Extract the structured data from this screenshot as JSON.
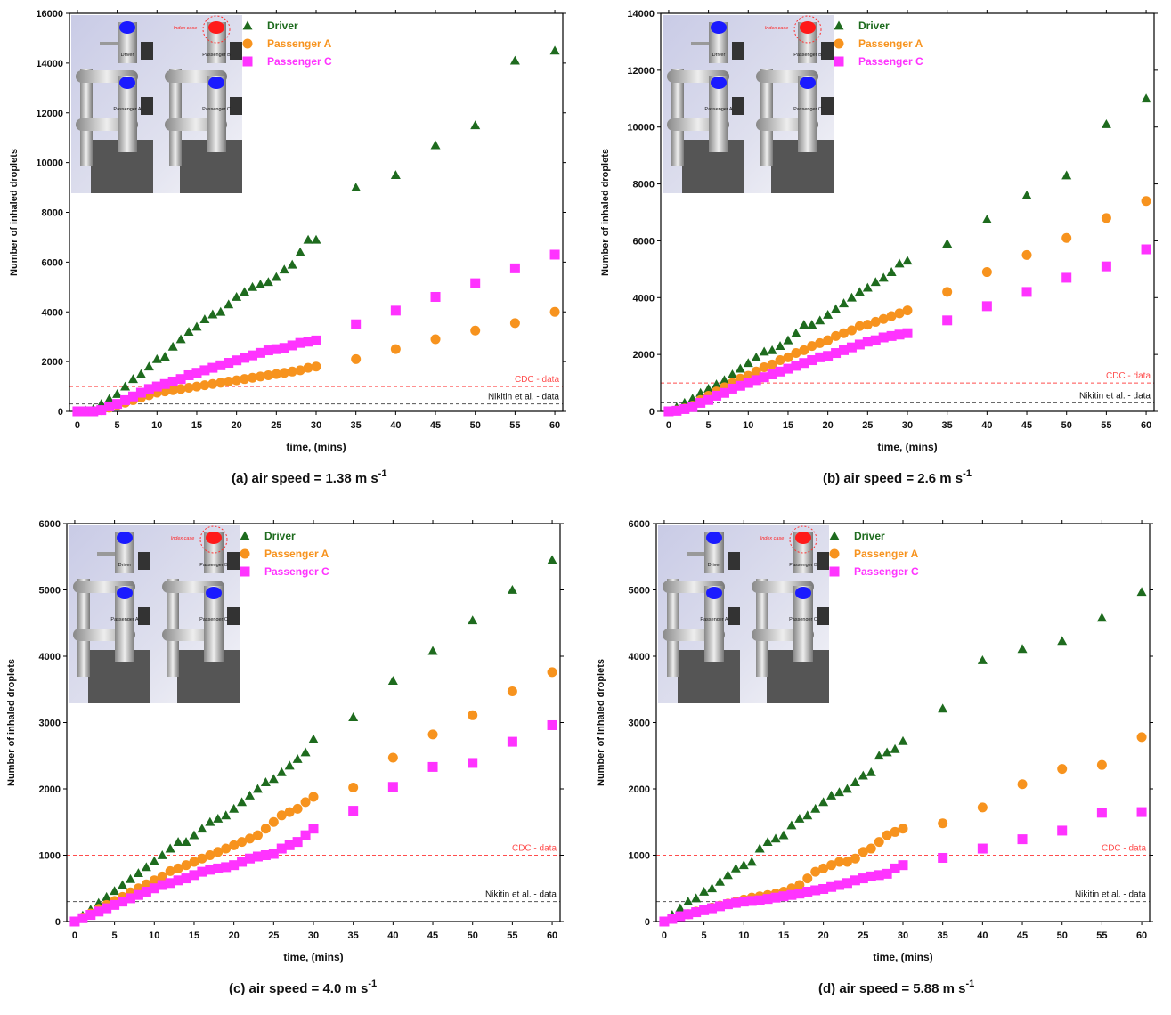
{
  "chart_data": [
    {
      "type": "scatter",
      "x_label": "time, (mins)",
      "y_label": "Number of inhaled droplets",
      "caption": "(a)  air speed = 1.38 m s",
      "caption_sup": "-1",
      "x": [
        0,
        1,
        2,
        3,
        4,
        5,
        6,
        7,
        8,
        9,
        10,
        11,
        12,
        13,
        14,
        15,
        16,
        17,
        18,
        19,
        20,
        21,
        22,
        23,
        24,
        25,
        26,
        27,
        28,
        29,
        30,
        35,
        40,
        45,
        50,
        55,
        60
      ],
      "xlim": [
        -1,
        61
      ],
      "xticks": [
        0,
        5,
        10,
        15,
        20,
        25,
        30,
        35,
        40,
        45,
        50,
        55,
        60
      ],
      "ylim": [
        0,
        16000
      ],
      "yticks": [
        0,
        2000,
        4000,
        6000,
        8000,
        10000,
        12000,
        14000,
        16000
      ],
      "series": [
        {
          "name": "Driver",
          "color": "#1e6b1e",
          "marker": "triangle",
          "values": [
            0,
            50,
            100,
            300,
            500,
            700,
            1000,
            1300,
            1500,
            1800,
            2100,
            2200,
            2600,
            2900,
            3200,
            3400,
            3700,
            3900,
            4000,
            4300,
            4600,
            4800,
            5000,
            5100,
            5200,
            5400,
            5700,
            5900,
            6400,
            6900,
            6900,
            9000,
            9500,
            10700,
            11500,
            14100,
            14500
          ]
        },
        {
          "name": "Passenger A",
          "color": "#f7931e",
          "marker": "circle",
          "values": [
            0,
            0,
            0,
            50,
            150,
            250,
            350,
            450,
            550,
            650,
            750,
            800,
            850,
            900,
            950,
            1000,
            1050,
            1100,
            1150,
            1200,
            1250,
            1300,
            1350,
            1400,
            1450,
            1500,
            1550,
            1600,
            1650,
            1750,
            1800,
            2100,
            2500,
            2900,
            3250,
            3550,
            4000
          ]
        },
        {
          "name": "Passenger C",
          "color": "#ff33ff",
          "marker": "square",
          "values": [
            0,
            0,
            0,
            50,
            200,
            300,
            450,
            600,
            750,
            900,
            1000,
            1100,
            1200,
            1300,
            1450,
            1550,
            1650,
            1750,
            1850,
            1950,
            2050,
            2150,
            2250,
            2350,
            2450,
            2500,
            2550,
            2650,
            2750,
            2800,
            2850,
            3500,
            4050,
            4600,
            5150,
            5750,
            6300
          ]
        }
      ],
      "reference_lines": [
        {
          "label": "CDC - data",
          "value": 1000,
          "color": "#ff4d4d"
        },
        {
          "label": "Nikitin et al. - data",
          "value": 300,
          "color": "#555555"
        }
      ],
      "inset_labels": {
        "driver": "Driver",
        "index": "Index case",
        "b": "Passenger B",
        "a": "Passenger A",
        "c": "Passenger C"
      }
    },
    {
      "type": "scatter",
      "x_label": "time, (mins)",
      "y_label": "Number of inhaled droplets",
      "caption": "(b)  air speed = 2.6 m s",
      "caption_sup": "-1",
      "x": [
        0,
        1,
        2,
        3,
        4,
        5,
        6,
        7,
        8,
        9,
        10,
        11,
        12,
        13,
        14,
        15,
        16,
        17,
        18,
        19,
        20,
        21,
        22,
        23,
        24,
        25,
        26,
        27,
        28,
        29,
        30,
        35,
        40,
        45,
        50,
        55,
        60
      ],
      "xlim": [
        -1,
        61
      ],
      "xticks": [
        0,
        5,
        10,
        15,
        20,
        25,
        30,
        35,
        40,
        45,
        50,
        55,
        60
      ],
      "ylim": [
        0,
        14000
      ],
      "yticks": [
        0,
        2000,
        4000,
        6000,
        8000,
        10000,
        12000,
        14000
      ],
      "series": [
        {
          "name": "Driver",
          "color": "#1e6b1e",
          "marker": "triangle",
          "values": [
            0,
            150,
            300,
            450,
            650,
            800,
            950,
            1100,
            1300,
            1500,
            1700,
            1900,
            2100,
            2150,
            2300,
            2500,
            2750,
            3050,
            3050,
            3200,
            3400,
            3600,
            3800,
            4000,
            4200,
            4350,
            4550,
            4700,
            4900,
            5200,
            5300,
            5900,
            6750,
            7600,
            8300,
            10100,
            11000
          ]
        },
        {
          "name": "Passenger A",
          "color": "#f7931e",
          "marker": "circle",
          "values": [
            0,
            30,
            100,
            200,
            400,
            550,
            700,
            850,
            1000,
            1150,
            1250,
            1400,
            1550,
            1650,
            1800,
            1900,
            2050,
            2150,
            2300,
            2400,
            2500,
            2650,
            2750,
            2850,
            3000,
            3050,
            3150,
            3250,
            3350,
            3450,
            3550,
            4200,
            4900,
            5500,
            6100,
            6800,
            7400
          ]
        },
        {
          "name": "Passenger C",
          "color": "#ff33ff",
          "marker": "square",
          "values": [
            0,
            20,
            80,
            150,
            300,
            400,
            550,
            650,
            800,
            900,
            1000,
            1100,
            1200,
            1300,
            1400,
            1500,
            1600,
            1700,
            1800,
            1900,
            1950,
            2050,
            2150,
            2250,
            2350,
            2450,
            2500,
            2600,
            2650,
            2700,
            2750,
            3200,
            3700,
            4200,
            4700,
            5100,
            5700
          ]
        }
      ],
      "reference_lines": [
        {
          "label": "CDC - data",
          "value": 1000,
          "color": "#ff4d4d"
        },
        {
          "label": "Nikitin et al. - data",
          "value": 300,
          "color": "#555555"
        }
      ],
      "inset_labels": {
        "driver": "Driver",
        "index": "Index case",
        "b": "Passenger B",
        "a": "Passenger A",
        "c": "Passenger C"
      }
    },
    {
      "type": "scatter",
      "x_label": "time, (mins)",
      "y_label": "Number of inhaled droplets",
      "caption": "(c)  air speed = 4.0 m s",
      "caption_sup": "-1",
      "x": [
        0,
        1,
        2,
        3,
        4,
        5,
        6,
        7,
        8,
        9,
        10,
        11,
        12,
        13,
        14,
        15,
        16,
        17,
        18,
        19,
        20,
        21,
        22,
        23,
        24,
        25,
        26,
        27,
        28,
        29,
        30,
        35,
        40,
        45,
        50,
        55,
        60
      ],
      "xlim": [
        -1,
        61
      ],
      "xticks": [
        0,
        5,
        10,
        15,
        20,
        25,
        30,
        35,
        40,
        45,
        50,
        55,
        60
      ],
      "ylim": [
        0,
        6000
      ],
      "yticks": [
        0,
        1000,
        2000,
        3000,
        4000,
        5000,
        6000
      ],
      "series": [
        {
          "name": "Driver",
          "color": "#1e6b1e",
          "marker": "triangle",
          "values": [
            0,
            90,
            180,
            280,
            370,
            460,
            550,
            640,
            730,
            820,
            910,
            1000,
            1100,
            1200,
            1200,
            1300,
            1400,
            1500,
            1550,
            1600,
            1700,
            1800,
            1900,
            2000,
            2100,
            2150,
            2250,
            2350,
            2450,
            2550,
            2750,
            3080,
            3630,
            4080,
            4540,
            5000,
            5450
          ]
        },
        {
          "name": "Passenger A",
          "color": "#f7931e",
          "marker": "circle",
          "values": [
            0,
            60,
            120,
            190,
            250,
            310,
            370,
            440,
            500,
            560,
            620,
            680,
            760,
            800,
            850,
            900,
            950,
            1000,
            1050,
            1100,
            1150,
            1200,
            1250,
            1300,
            1400,
            1500,
            1600,
            1650,
            1700,
            1800,
            1880,
            2020,
            2470,
            2820,
            3110,
            3470,
            3760
          ]
        },
        {
          "name": "Passenger C",
          "color": "#ff33ff",
          "marker": "square",
          "values": [
            0,
            50,
            100,
            150,
            200,
            250,
            300,
            350,
            400,
            450,
            500,
            550,
            580,
            620,
            650,
            700,
            750,
            780,
            800,
            820,
            850,
            900,
            950,
            980,
            1000,
            1020,
            1100,
            1150,
            1200,
            1300,
            1400,
            1670,
            2030,
            2330,
            2390,
            2710,
            2960
          ]
        }
      ],
      "reference_lines": [
        {
          "label": "CDC - data",
          "value": 1000,
          "color": "#ff4d4d"
        },
        {
          "label": "Nikitin et al. - data",
          "value": 300,
          "color": "#555555"
        }
      ],
      "inset_labels": {
        "driver": "Driver",
        "index": "Index case",
        "b": "Passenger B",
        "a": "Passenger A",
        "c": "Passenger C"
      }
    },
    {
      "type": "scatter",
      "x_label": "time, (mins)",
      "y_label": "Number of inhaled droplets",
      "caption": "(d)  air speed = 5.88 m s",
      "caption_sup": "-1",
      "x": [
        0,
        1,
        2,
        3,
        4,
        5,
        6,
        7,
        8,
        9,
        10,
        11,
        12,
        13,
        14,
        15,
        16,
        17,
        18,
        19,
        20,
        21,
        22,
        23,
        24,
        25,
        26,
        27,
        28,
        29,
        30,
        35,
        40,
        45,
        50,
        55,
        60
      ],
      "xlim": [
        -1,
        61
      ],
      "xticks": [
        0,
        5,
        10,
        15,
        20,
        25,
        30,
        35,
        40,
        45,
        50,
        55,
        60
      ],
      "ylim": [
        0,
        6000
      ],
      "yticks": [
        0,
        1000,
        2000,
        3000,
        4000,
        5000,
        6000
      ],
      "series": [
        {
          "name": "Driver",
          "color": "#1e6b1e",
          "marker": "triangle",
          "values": [
            0,
            100,
            200,
            300,
            350,
            450,
            500,
            600,
            700,
            800,
            850,
            900,
            1100,
            1200,
            1250,
            1300,
            1450,
            1550,
            1600,
            1700,
            1800,
            1900,
            1950,
            2000,
            2100,
            2200,
            2250,
            2500,
            2550,
            2600,
            2720,
            3210,
            3940,
            4110,
            4230,
            4580,
            4970
          ]
        },
        {
          "name": "Passenger A",
          "color": "#f7931e",
          "marker": "circle",
          "values": [
            0,
            40,
            80,
            110,
            150,
            180,
            210,
            240,
            270,
            300,
            330,
            360,
            380,
            400,
            420,
            450,
            500,
            550,
            650,
            750,
            800,
            850,
            900,
            900,
            950,
            1050,
            1100,
            1200,
            1300,
            1350,
            1400,
            1480,
            1720,
            2070,
            2300,
            2360,
            2780
          ]
        },
        {
          "name": "Passenger C",
          "color": "#ff33ff",
          "marker": "square",
          "values": [
            0,
            40,
            80,
            110,
            140,
            170,
            200,
            230,
            260,
            280,
            300,
            310,
            320,
            340,
            360,
            380,
            400,
            420,
            450,
            470,
            490,
            520,
            550,
            580,
            620,
            650,
            680,
            700,
            720,
            800,
            850,
            960,
            1100,
            1240,
            1370,
            1640,
            1650
          ]
        }
      ],
      "reference_lines": [
        {
          "label": "CDC - data",
          "value": 1000,
          "color": "#ff4d4d"
        },
        {
          "label": "Nikitin et al. - data",
          "value": 300,
          "color": "#555555"
        }
      ],
      "inset_labels": {
        "driver": "Driver",
        "index": "Index case",
        "b": "Passenger B",
        "a": "Passenger A",
        "c": "Passenger C"
      }
    }
  ]
}
